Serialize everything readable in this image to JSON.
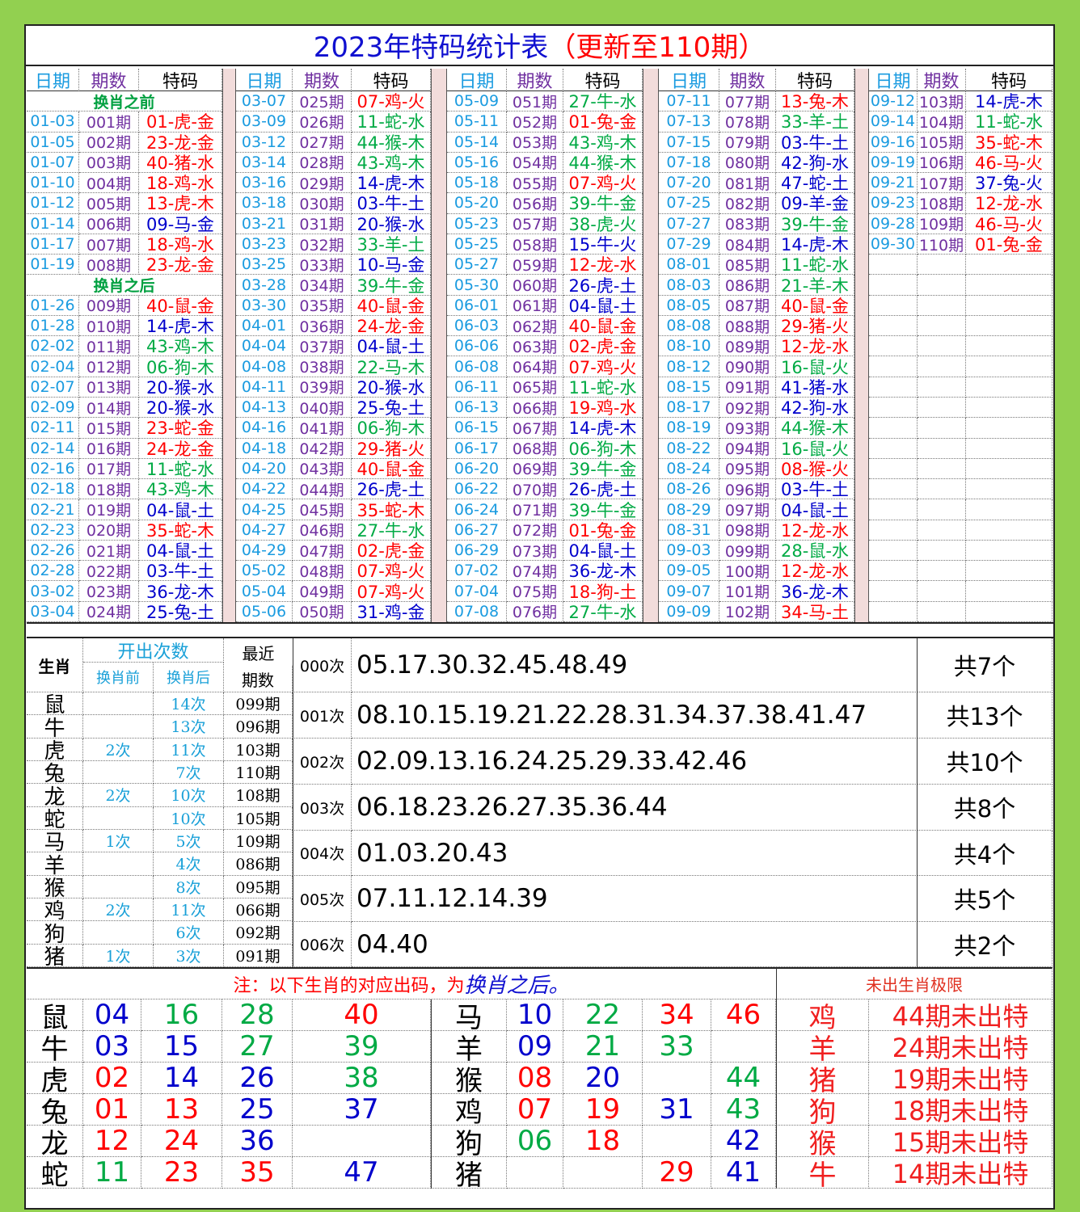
{
  "title": "2023年特码统计表",
  "title_update": "（更新至110期）",
  "draw_table": {
    "headers": [
      "日期",
      "期数",
      "特码"
    ],
    "before_label": "换肖之前",
    "after_label": "换肖之后",
    "first_column": {
      "before": [
        [
          "01-03",
          "001期",
          "01-虎-金",
          "#f00"
        ],
        [
          "01-05",
          "002期",
          "23-龙-金",
          "#f00"
        ],
        [
          "01-07",
          "003期",
          "40-猪-水",
          "#f00"
        ],
        [
          "01-10",
          "004期",
          "18-鸡-水",
          "#f00"
        ],
        [
          "01-12",
          "005期",
          "13-虎-木",
          "#f00"
        ],
        [
          "01-14",
          "006期",
          "09-马-金",
          "#00c"
        ],
        [
          "01-17",
          "007期",
          "18-鸡-水",
          "#f00"
        ],
        [
          "01-19",
          "008期",
          "23-龙-金",
          "#f00"
        ]
      ],
      "after": [
        [
          "01-26",
          "009期",
          "40-鼠-金",
          "#f00"
        ],
        [
          "01-28",
          "010期",
          "14-虎-木",
          "#00c"
        ],
        [
          "02-02",
          "011期",
          "43-鸡-木",
          "#0a4"
        ],
        [
          "02-04",
          "012期",
          "06-狗-木",
          "#0a4"
        ],
        [
          "02-07",
          "013期",
          "20-猴-水",
          "#00c"
        ],
        [
          "02-09",
          "014期",
          "20-猴-水",
          "#00c"
        ],
        [
          "02-11",
          "015期",
          "23-蛇-金",
          "#f00"
        ],
        [
          "02-14",
          "016期",
          "24-龙-金",
          "#f00"
        ],
        [
          "02-16",
          "017期",
          "11-蛇-水",
          "#0a4"
        ],
        [
          "02-18",
          "018期",
          "43-鸡-木",
          "#0a4"
        ],
        [
          "02-21",
          "019期",
          "04-鼠-土",
          "#00c"
        ],
        [
          "02-23",
          "020期",
          "35-蛇-木",
          "#f00"
        ],
        [
          "02-26",
          "021期",
          "04-鼠-土",
          "#00c"
        ],
        [
          "02-28",
          "022期",
          "03-牛-土",
          "#00c"
        ],
        [
          "03-02",
          "023期",
          "36-龙-木",
          "#00c"
        ],
        [
          "03-04",
          "024期",
          "25-兔-土",
          "#00c"
        ]
      ]
    },
    "columns": [
      [
        [
          "03-07",
          "025期",
          "07-鸡-火",
          "#f00"
        ],
        [
          "03-09",
          "026期",
          "11-蛇-水",
          "#0a4"
        ],
        [
          "03-12",
          "027期",
          "44-猴-木",
          "#0a4"
        ],
        [
          "03-14",
          "028期",
          "43-鸡-木",
          "#0a4"
        ],
        [
          "03-16",
          "029期",
          "14-虎-木",
          "#00c"
        ],
        [
          "03-18",
          "030期",
          "03-牛-土",
          "#00c"
        ],
        [
          "03-21",
          "031期",
          "20-猴-水",
          "#00c"
        ],
        [
          "03-23",
          "032期",
          "33-羊-土",
          "#0a4"
        ],
        [
          "03-25",
          "033期",
          "10-马-金",
          "#00c"
        ],
        [
          "03-28",
          "034期",
          "39-牛-金",
          "#0a4"
        ],
        [
          "03-30",
          "035期",
          "40-鼠-金",
          "#f00"
        ],
        [
          "04-01",
          "036期",
          "24-龙-金",
          "#f00"
        ],
        [
          "04-04",
          "037期",
          "04-鼠-土",
          "#00c"
        ],
        [
          "04-08",
          "038期",
          "22-马-木",
          "#0a4"
        ],
        [
          "04-11",
          "039期",
          "20-猴-水",
          "#00c"
        ],
        [
          "04-13",
          "040期",
          "25-兔-土",
          "#00c"
        ],
        [
          "04-16",
          "041期",
          "06-狗-木",
          "#0a4"
        ],
        [
          "04-18",
          "042期",
          "29-猪-火",
          "#f00"
        ],
        [
          "04-20",
          "043期",
          "40-鼠-金",
          "#f00"
        ],
        [
          "04-22",
          "044期",
          "26-虎-土",
          "#00c"
        ],
        [
          "04-25",
          "045期",
          "35-蛇-木",
          "#f00"
        ],
        [
          "04-27",
          "046期",
          "27-牛-水",
          "#0a4"
        ],
        [
          "04-29",
          "047期",
          "02-虎-金",
          "#f00"
        ],
        [
          "05-02",
          "048期",
          "07-鸡-火",
          "#f00"
        ],
        [
          "05-04",
          "049期",
          "07-鸡-火",
          "#f00"
        ],
        [
          "05-06",
          "050期",
          "31-鸡-金",
          "#00c"
        ]
      ],
      [
        [
          "05-09",
          "051期",
          "27-牛-水",
          "#0a4"
        ],
        [
          "05-11",
          "052期",
          "01-兔-金",
          "#f00"
        ],
        [
          "05-14",
          "053期",
          "43-鸡-木",
          "#0a4"
        ],
        [
          "05-16",
          "054期",
          "44-猴-木",
          "#0a4"
        ],
        [
          "05-18",
          "055期",
          "07-鸡-火",
          "#f00"
        ],
        [
          "05-20",
          "056期",
          "39-牛-金",
          "#0a4"
        ],
        [
          "05-23",
          "057期",
          "38-虎-火",
          "#0a4"
        ],
        [
          "05-25",
          "058期",
          "15-牛-火",
          "#00c"
        ],
        [
          "05-27",
          "059期",
          "12-龙-水",
          "#f00"
        ],
        [
          "05-30",
          "060期",
          "26-虎-土",
          "#00c"
        ],
        [
          "06-01",
          "061期",
          "04-鼠-土",
          "#00c"
        ],
        [
          "06-03",
          "062期",
          "40-鼠-金",
          "#f00"
        ],
        [
          "06-06",
          "063期",
          "02-虎-金",
          "#f00"
        ],
        [
          "06-08",
          "064期",
          "07-鸡-火",
          "#f00"
        ],
        [
          "06-11",
          "065期",
          "11-蛇-水",
          "#0a4"
        ],
        [
          "06-13",
          "066期",
          "19-鸡-水",
          "#f00"
        ],
        [
          "06-15",
          "067期",
          "14-虎-木",
          "#00c"
        ],
        [
          "06-17",
          "068期",
          "06-狗-木",
          "#0a4"
        ],
        [
          "06-20",
          "069期",
          "39-牛-金",
          "#0a4"
        ],
        [
          "06-22",
          "070期",
          "26-虎-土",
          "#00c"
        ],
        [
          "06-24",
          "071期",
          "39-牛-金",
          "#0a4"
        ],
        [
          "06-27",
          "072期",
          "01-兔-金",
          "#f00"
        ],
        [
          "06-29",
          "073期",
          "04-鼠-土",
          "#00c"
        ],
        [
          "07-02",
          "074期",
          "36-龙-木",
          "#00c"
        ],
        [
          "07-04",
          "075期",
          "18-狗-土",
          "#f00"
        ],
        [
          "07-08",
          "076期",
          "27-牛-水",
          "#0a4"
        ]
      ],
      [
        [
          "07-11",
          "077期",
          "13-兔-木",
          "#f00"
        ],
        [
          "07-13",
          "078期",
          "33-羊-土",
          "#0a4"
        ],
        [
          "07-15",
          "079期",
          "03-牛-土",
          "#00c"
        ],
        [
          "07-18",
          "080期",
          "42-狗-水",
          "#00c"
        ],
        [
          "07-20",
          "081期",
          "47-蛇-土",
          "#00c"
        ],
        [
          "07-25",
          "082期",
          "09-羊-金",
          "#00c"
        ],
        [
          "07-27",
          "083期",
          "39-牛-金",
          "#0a4"
        ],
        [
          "07-29",
          "084期",
          "14-虎-木",
          "#00c"
        ],
        [
          "08-01",
          "085期",
          "11-蛇-水",
          "#0a4"
        ],
        [
          "08-03",
          "086期",
          "21-羊-木",
          "#0a4"
        ],
        [
          "08-05",
          "087期",
          "40-鼠-金",
          "#f00"
        ],
        [
          "08-08",
          "088期",
          "29-猪-火",
          "#f00"
        ],
        [
          "08-10",
          "089期",
          "12-龙-水",
          "#f00"
        ],
        [
          "08-12",
          "090期",
          "16-鼠-火",
          "#0a4"
        ],
        [
          "08-15",
          "091期",
          "41-猪-水",
          "#00c"
        ],
        [
          "08-17",
          "092期",
          "42-狗-水",
          "#00c"
        ],
        [
          "08-19",
          "093期",
          "44-猴-木",
          "#0a4"
        ],
        [
          "08-22",
          "094期",
          "16-鼠-火",
          "#0a4"
        ],
        [
          "08-24",
          "095期",
          "08-猴-火",
          "#f00"
        ],
        [
          "08-26",
          "096期",
          "03-牛-土",
          "#00c"
        ],
        [
          "08-29",
          "097期",
          "04-鼠-土",
          "#00c"
        ],
        [
          "08-31",
          "098期",
          "12-龙-水",
          "#f00"
        ],
        [
          "09-03",
          "099期",
          "28-鼠-水",
          "#0a4"
        ],
        [
          "09-05",
          "100期",
          "12-龙-水",
          "#f00"
        ],
        [
          "09-07",
          "101期",
          "36-龙-木",
          "#00c"
        ],
        [
          "09-09",
          "102期",
          "34-马-土",
          "#f00"
        ]
      ],
      [
        [
          "09-12",
          "103期",
          "14-虎-木",
          "#00c"
        ],
        [
          "09-14",
          "104期",
          "11-蛇-水",
          "#0a4"
        ],
        [
          "09-16",
          "105期",
          "35-蛇-木",
          "#f00"
        ],
        [
          "09-19",
          "106期",
          "46-马-火",
          "#f00"
        ],
        [
          "09-21",
          "107期",
          "37-兔-火",
          "#00c"
        ],
        [
          "09-23",
          "108期",
          "12-龙-水",
          "#f00"
        ],
        [
          "09-28",
          "109期",
          "46-马-火",
          "#f00"
        ],
        [
          "09-30",
          "110期",
          "01-兔-金",
          "#f00"
        ]
      ]
    ]
  },
  "zodiac_counts": {
    "header_zodiac": "生肖",
    "header_count": "开出次数",
    "header_before": "换肖前",
    "header_after": "换肖后",
    "header_recent": [
      "最近",
      "期数"
    ],
    "rows": [
      [
        "鼠",
        null,
        "14次",
        "099期"
      ],
      [
        "牛",
        null,
        "13次",
        "096期"
      ],
      [
        "虎",
        "2次",
        "11次",
        "103期"
      ],
      [
        "兔",
        null,
        "7次",
        "110期"
      ],
      [
        "龙",
        "2次",
        "10次",
        "108期"
      ],
      [
        "蛇",
        null,
        "10次",
        "105期"
      ],
      [
        "马",
        "1次",
        "5次",
        "109期"
      ],
      [
        "羊",
        null,
        "4次",
        "086期"
      ],
      [
        "猴",
        null,
        "8次",
        "095期"
      ],
      [
        "鸡",
        "2次",
        "11次",
        "066期"
      ],
      [
        "狗",
        null,
        "6次",
        "092期"
      ],
      [
        "猪",
        "1次",
        "3次",
        "091期"
      ]
    ]
  },
  "miss_counts": [
    [
      "000次",
      "05.17.30.32.45.48.49",
      "共7个"
    ],
    [
      "001次",
      "08.10.15.19.21.22.28.31.34.37.38.41.47",
      "共13个"
    ],
    [
      "002次",
      "02.09.13.16.24.25.29.33.42.46",
      "共10个"
    ],
    [
      "003次",
      "06.18.23.26.27.35.36.44",
      "共8个"
    ],
    [
      "004次",
      "01.03.20.43",
      "共4个"
    ],
    [
      "005次",
      "07.11.12.14.39",
      "共5个"
    ],
    [
      "006次",
      "04.40",
      "共2个"
    ]
  ],
  "note": "注：以下生肖的对应出码，为",
  "note_emphasis": "换肖之后。",
  "mapping": [
    {
      "zodiac": "鼠",
      "numbers": [
        "04",
        "16",
        "28",
        "40"
      ],
      "colors": [
        "#00c",
        "#0a4",
        "#0a4",
        "#f00"
      ]
    },
    {
      "zodiac": "牛",
      "numbers": [
        "03",
        "15",
        "27",
        "39"
      ],
      "colors": [
        "#00c",
        "#00c",
        "#0a4",
        "#0a4"
      ]
    },
    {
      "zodiac": "虎",
      "numbers": [
        "02",
        "14",
        "26",
        "38"
      ],
      "colors": [
        "#f00",
        "#00c",
        "#00c",
        "#0a4"
      ]
    },
    {
      "zodiac": "兔",
      "numbers": [
        "01",
        "13",
        "25",
        "37"
      ],
      "colors": [
        "#f00",
        "#f00",
        "#00c",
        "#00c"
      ]
    },
    {
      "zodiac": "龙",
      "numbers": [
        "12",
        "24",
        "36",
        null
      ],
      "colors": [
        "#f00",
        "#f00",
        "#00c",
        null
      ]
    },
    {
      "zodiac": "蛇",
      "numbers": [
        "11",
        "23",
        "35",
        "47"
      ],
      "colors": [
        "#0a4",
        "#f00",
        "#f00",
        "#00c"
      ]
    },
    {
      "zodiac": "马",
      "numbers": [
        "10",
        "22",
        "34",
        "46"
      ],
      "colors": [
        "#00c",
        "#0a4",
        "#f00",
        "#f00"
      ]
    },
    {
      "zodiac": "羊",
      "numbers": [
        "09",
        "21",
        "33",
        null
      ],
      "colors": [
        "#00c",
        "#0a4",
        "#0a4",
        null
      ]
    },
    {
      "zodiac": "猴",
      "numbers": [
        "08",
        "20",
        null,
        "44"
      ],
      "colors": [
        "#f00",
        "#00c",
        null,
        "#0a4"
      ]
    },
    {
      "zodiac": "鸡",
      "numbers": [
        "07",
        "19",
        "31",
        "43"
      ],
      "colors": [
        "#f00",
        "#f00",
        "#00c",
        "#0a4"
      ]
    },
    {
      "zodiac": "狗",
      "numbers": [
        "06",
        "18",
        null,
        "42"
      ],
      "colors": [
        "#0a4",
        "#f00",
        null,
        "#00c"
      ]
    },
    {
      "zodiac": "猪",
      "numbers": [
        null,
        null,
        "29",
        "41"
      ],
      "colors": [
        null,
        null,
        "#f00",
        "#00c"
      ]
    }
  ],
  "limit": {
    "title": "未出生肖极限",
    "rows": [
      [
        "鸡",
        "44期未出特"
      ],
      [
        "羊",
        "24期未出特"
      ],
      [
        "猪",
        "19期未出特"
      ],
      [
        "狗",
        "18期未出特"
      ],
      [
        "猴",
        "15期未出特"
      ],
      [
        "牛",
        "14期未出特"
      ]
    ]
  }
}
